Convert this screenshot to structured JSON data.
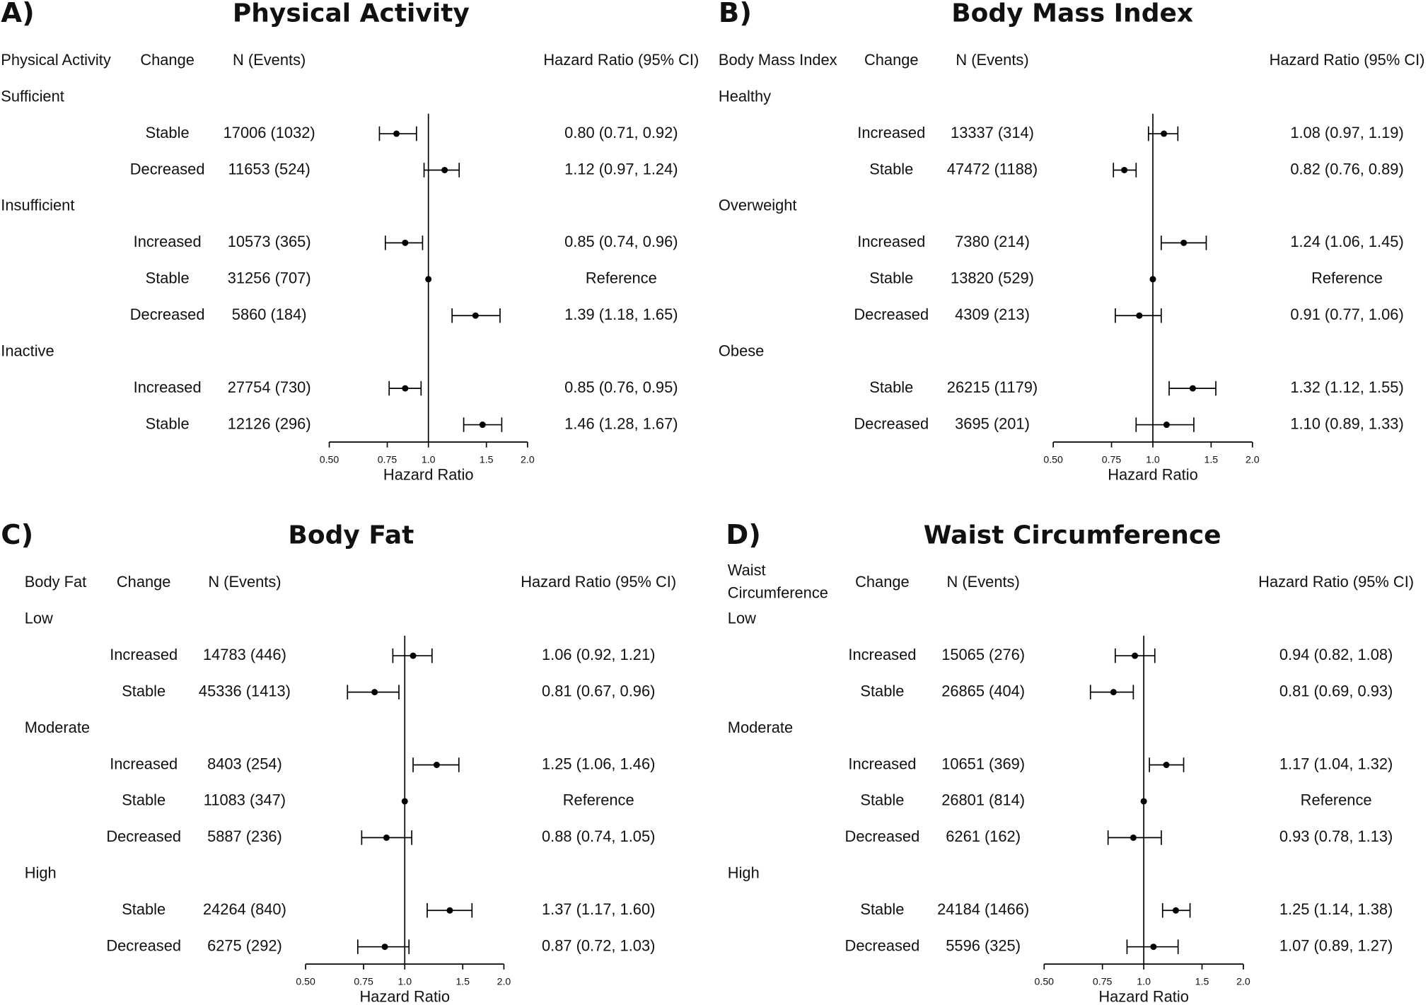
{
  "chart_data": [
    {
      "type": "forest",
      "panel_label": "A)",
      "title": "Physical Activity",
      "columns": [
        "Physical Activity",
        "Change",
        "N (Events)",
        "Hazard Ratio (95% CI)"
      ],
      "x_label": "Hazard Ratio",
      "log_scale": true,
      "color": "#000000",
      "xlim": [
        0.5,
        2
      ],
      "xticks": [
        {
          "value": 0.5,
          "label": "0.50"
        },
        0.75,
        {
          "value": 1,
          "label": "1.0"
        },
        1.5,
        {
          "value": 2,
          "label": "2.0"
        }
      ],
      "groups": [
        {
          "name": "Sufficient",
          "rows": [
            {
              "change": "Stable",
              "n_events": "17006 (1032)",
              "hr": 0.8,
              "lower": 0.71,
              "upper": 0.92,
              "hr_label": "0.80 (0.71, 0.92)"
            },
            {
              "change": "Decreased",
              "n_events": "11653 (524)",
              "hr": 1.12,
              "lower": 0.97,
              "upper": 1.24,
              "hr_label": "1.12 (0.97, 1.24)"
            }
          ]
        },
        {
          "name": "Insufficient",
          "rows": [
            {
              "change": "Increased",
              "n_events": "10573 (365)",
              "hr": 0.85,
              "lower": 0.74,
              "upper": 0.96,
              "hr_label": "0.85 (0.74, 0.96)"
            },
            {
              "change": "Stable",
              "n_events": "31256 (707)",
              "hr": 1,
              "lower": null,
              "upper": null,
              "hr_label": "Reference"
            },
            {
              "change": "Decreased",
              "n_events": "5860 (184)",
              "hr": 1.39,
              "lower": 1.18,
              "upper": 1.65,
              "hr_label": "1.39 (1.18, 1.65)"
            }
          ]
        },
        {
          "name": "Inactive",
          "rows": [
            {
              "change": "Increased",
              "n_events": "27754 (730)",
              "hr": 0.85,
              "lower": 0.76,
              "upper": 0.95,
              "hr_label": "0.85 (0.76, 0.95)"
            },
            {
              "change": "Stable",
              "n_events": "12126 (296)",
              "hr": 1.46,
              "lower": 1.28,
              "upper": 1.67,
              "hr_label": "1.46 (1.28, 1.67)"
            }
          ]
        }
      ]
    },
    {
      "type": "forest",
      "panel_label": "B)",
      "title": "Body Mass Index",
      "columns": [
        "Body Mass Index",
        "Change",
        "N (Events)",
        "Hazard Ratio (95% CI)"
      ],
      "x_label": "Hazard Ratio",
      "log_scale": true,
      "color": "#000000",
      "xlim": [
        0.5,
        2
      ],
      "xticks": [
        {
          "value": 0.5,
          "label": "0.50"
        },
        0.75,
        {
          "value": 1,
          "label": "1.0"
        },
        1.5,
        {
          "value": 2,
          "label": "2.0"
        }
      ],
      "groups": [
        {
          "name": "Healthy",
          "rows": [
            {
              "change": "Increased",
              "n_events": "13337 (314)",
              "hr": 1.08,
              "lower": 0.97,
              "upper": 1.19,
              "hr_label": "1.08 (0.97, 1.19)"
            },
            {
              "change": "Stable",
              "n_events": "47472 (1188)",
              "hr": 0.82,
              "lower": 0.76,
              "upper": 0.89,
              "hr_label": "0.82 (0.76, 0.89)"
            }
          ]
        },
        {
          "name": "Overweight",
          "rows": [
            {
              "change": "Increased",
              "n_events": "7380 (214)",
              "hr": 1.24,
              "lower": 1.06,
              "upper": 1.45,
              "hr_label": "1.24 (1.06, 1.45)"
            },
            {
              "change": "Stable",
              "n_events": "13820 (529)",
              "hr": 1,
              "lower": null,
              "upper": null,
              "hr_label": "Reference"
            },
            {
              "change": "Decreased",
              "n_events": "4309 (213)",
              "hr": 0.91,
              "lower": 0.77,
              "upper": 1.06,
              "hr_label": "0.91 (0.77, 1.06)"
            }
          ]
        },
        {
          "name": "Obese",
          "rows": [
            {
              "change": "Stable",
              "n_events": "26215 (1179)",
              "hr": 1.32,
              "lower": 1.12,
              "upper": 1.55,
              "hr_label": "1.32 (1.12, 1.55)"
            },
            {
              "change": "Decreased",
              "n_events": "3695 (201)",
              "hr": 1.1,
              "lower": 0.89,
              "upper": 1.33,
              "hr_label": "1.10 (0.89, 1.33)"
            }
          ]
        }
      ]
    },
    {
      "type": "forest",
      "panel_label": "C)",
      "title": "Body Fat",
      "columns": [
        "Body Fat",
        "Change",
        "N (Events)",
        "Hazard Ratio (95% CI)"
      ],
      "x_label": "Hazard Ratio",
      "log_scale": true,
      "color": "#000000",
      "xlim": [
        0.5,
        2
      ],
      "xticks": [
        {
          "value": 0.5,
          "label": "0.50"
        },
        0.75,
        {
          "value": 1,
          "label": "1.0"
        },
        1.5,
        {
          "value": 2,
          "label": "2.0"
        }
      ],
      "groups": [
        {
          "name": "Low",
          "rows": [
            {
              "change": "Increased",
              "n_events": "14783 (446)",
              "hr": 1.06,
              "lower": 0.92,
              "upper": 1.21,
              "hr_label": "1.06 (0.92, 1.21)"
            },
            {
              "change": "Stable",
              "n_events": "45336 (1413)",
              "hr": 0.81,
              "lower": 0.67,
              "upper": 0.96,
              "hr_label": "0.81 (0.67, 0.96)"
            }
          ]
        },
        {
          "name": "Moderate",
          "rows": [
            {
              "change": "Increased",
              "n_events": "8403 (254)",
              "hr": 1.25,
              "lower": 1.06,
              "upper": 1.46,
              "hr_label": "1.25 (1.06, 1.46)"
            },
            {
              "change": "Stable",
              "n_events": "11083 (347)",
              "hr": 1,
              "lower": null,
              "upper": null,
              "hr_label": "Reference"
            },
            {
              "change": "Decreased",
              "n_events": "5887 (236)",
              "hr": 0.88,
              "lower": 0.74,
              "upper": 1.05,
              "hr_label": "0.88 (0.74, 1.05)"
            }
          ]
        },
        {
          "name": "High",
          "rows": [
            {
              "change": "Stable",
              "n_events": "24264 (840)",
              "hr": 1.37,
              "lower": 1.17,
              "upper": 1.6,
              "hr_label": "1.37 (1.17, 1.60)"
            },
            {
              "change": "Decreased",
              "n_events": "6275 (292)",
              "hr": 0.87,
              "lower": 0.72,
              "upper": 1.03,
              "hr_label": "0.87 (0.72, 1.03)"
            }
          ]
        }
      ]
    },
    {
      "type": "forest",
      "panel_label": "D)",
      "title": "Waist Circumference",
      "columns": [
        "Waist Circumference",
        "Change",
        "N (Events)",
        "Hazard Ratio (95% CI)"
      ],
      "x_label": "Hazard Ratio",
      "log_scale": true,
      "color": "#000000",
      "xlim": [
        0.5,
        2
      ],
      "xticks": [
        {
          "value": 0.5,
          "label": "0.50"
        },
        0.75,
        {
          "value": 1,
          "label": "1.0"
        },
        1.5,
        {
          "value": 2,
          "label": "2.0"
        }
      ],
      "groups": [
        {
          "name": "Low",
          "rows": [
            {
              "change": "Increased",
              "n_events": "15065 (276)",
              "hr": 0.94,
              "lower": 0.82,
              "upper": 1.08,
              "hr_label": "0.94 (0.82, 1.08)"
            },
            {
              "change": "Stable",
              "n_events": "26865 (404)",
              "hr": 0.81,
              "lower": 0.69,
              "upper": 0.93,
              "hr_label": "0.81 (0.69, 0.93)"
            }
          ]
        },
        {
          "name": "Moderate",
          "rows": [
            {
              "change": "Increased",
              "n_events": "10651 (369)",
              "hr": 1.17,
              "lower": 1.04,
              "upper": 1.32,
              "hr_label": "1.17 (1.04, 1.32)"
            },
            {
              "change": "Stable",
              "n_events": "26801 (814)",
              "hr": 1,
              "lower": null,
              "upper": null,
              "hr_label": "Reference"
            },
            {
              "change": "Decreased",
              "n_events": "6261 (162)",
              "hr": 0.93,
              "lower": 0.78,
              "upper": 1.13,
              "hr_label": "0.93 (0.78, 1.13)"
            }
          ]
        },
        {
          "name": "High",
          "rows": [
            {
              "change": "Stable",
              "n_events": "24184 (1466)",
              "hr": 1.25,
              "lower": 1.14,
              "upper": 1.38,
              "hr_label": "1.25 (1.14, 1.38)"
            },
            {
              "change": "Decreased",
              "n_events": "5596 (325)",
              "hr": 1.07,
              "lower": 0.89,
              "upper": 1.27,
              "hr_label": "1.07 (0.89, 1.27)"
            }
          ]
        }
      ]
    }
  ]
}
